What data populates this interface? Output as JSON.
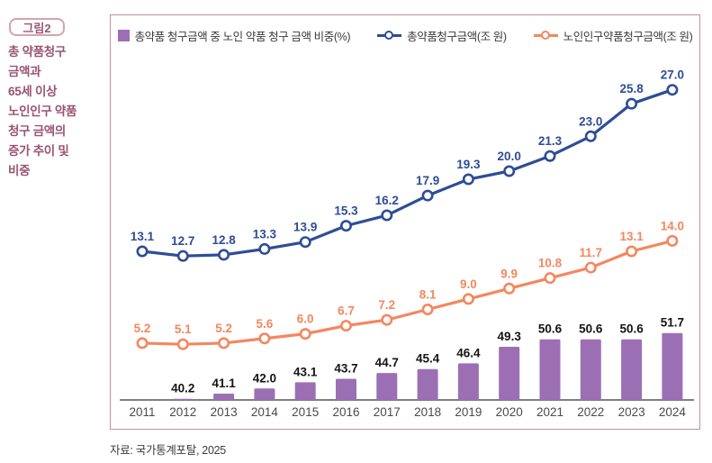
{
  "figure": {
    "tag": "그림2",
    "title_lines": [
      "총 약품청구",
      "금액과",
      "65세 이상",
      "노인인구 약품",
      "청구 금액의",
      "증가 추이 및",
      "비중"
    ],
    "source": "자료: 국가통계포탈, 2025"
  },
  "colors": {
    "bar": "#9c6fb5",
    "total_line": "#2e4d96",
    "elderly_line": "#f4875f",
    "panel_border": "#c58fa0",
    "tag_border": "#d8a2b2",
    "figure_text": "#9a5472",
    "axis": "#7f7f7f",
    "bar_label": "#141414",
    "tick_label": "#4a4a4a",
    "legend_text": "#3a3a3a"
  },
  "chart_data": {
    "type": "bar",
    "subtype": "bar-line-combo",
    "title": "총 약품청구 금액과 65세 이상 노인인구 약품 청구 금액의 증가 추이 및 비중",
    "categories": [
      "2011",
      "2012",
      "2013",
      "2014",
      "2015",
      "2016",
      "2017",
      "2018",
      "2019",
      "2020",
      "2021",
      "2022",
      "2023",
      "2024"
    ],
    "series": [
      {
        "name": "총약품 청구금액 중 노인 약품 청구 금액 비중(%)",
        "type": "bar",
        "values": [
          null,
          40.2,
          41.1,
          42.0,
          43.1,
          43.7,
          44.7,
          45.4,
          46.4,
          49.3,
          50.6,
          50.6,
          50.6,
          51.7
        ]
      },
      {
        "name": "총약품청구금액(조 원)",
        "type": "line",
        "values": [
          13.1,
          12.7,
          12.8,
          13.3,
          13.9,
          15.3,
          16.2,
          17.9,
          19.3,
          20.0,
          21.3,
          23.0,
          25.8,
          27.0
        ]
      },
      {
        "name": "노인인구약품청구금액(조 원)",
        "type": "line",
        "values": [
          5.2,
          5.1,
          5.2,
          5.6,
          6.0,
          6.7,
          7.2,
          8.1,
          9.0,
          9.9,
          10.8,
          11.7,
          13.1,
          14.0
        ]
      }
    ],
    "xlabel": "",
    "ylabel": "",
    "legend_position": "top",
    "grid": false,
    "data_labels": true,
    "bar_axis_baseline": 40,
    "line_axis_min": 0
  }
}
